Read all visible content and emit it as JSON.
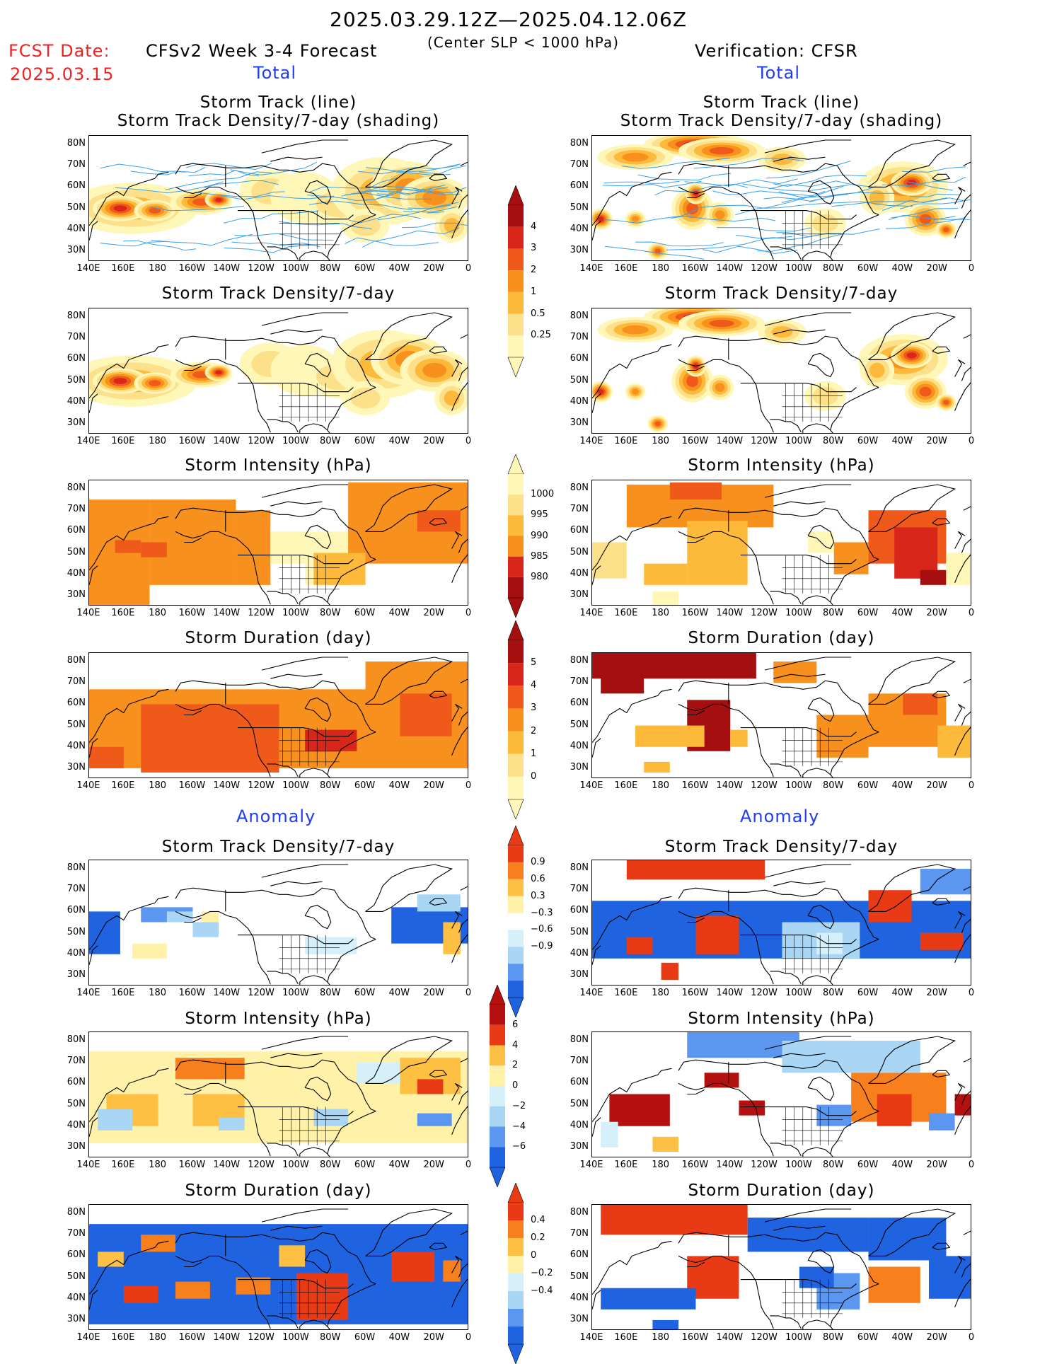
{
  "header": {
    "date_range": "2025.03.29.12Z—2025.04.12.06Z",
    "fcst_label": "FCST Date:",
    "fcst_date": "2025.03.15",
    "forecast_title": "CFSv2 Week 3-4 Forecast",
    "criterion": "(Center SLP < 1000 hPa)",
    "verification": "Verification: CFSR",
    "total_left": "Total",
    "total_right": "Total",
    "anomaly_left": "Anomaly",
    "anomaly_right": "Anomaly"
  },
  "panel_titles": {
    "track_line": "Storm Track (line)",
    "track_shading": "Storm Track Density/7-day (shading)",
    "density": "Storm Track Density/7-day",
    "intensity": "Storm Intensity (hPa)",
    "duration": "Storm Duration (day)"
  },
  "axes": {
    "lat_labels": [
      "80N",
      "70N",
      "60N",
      "50N",
      "40N",
      "30N"
    ],
    "lon_labels": [
      "140E",
      "160E",
      "180",
      "160W",
      "140W",
      "120W",
      "100W",
      "80W",
      "60W",
      "40W",
      "20W",
      "0"
    ]
  },
  "colorbars": {
    "density_total": [
      "4",
      "3",
      "2",
      "1",
      "0.5",
      "0.25"
    ],
    "intensity_total": [
      "1000",
      "995",
      "990",
      "985",
      "980"
    ],
    "duration_total": [
      "5",
      "4",
      "3",
      "2",
      "1",
      "0"
    ],
    "density_anom": [
      "0.9",
      "0.6",
      "0.3",
      "−0.3",
      "−0.6",
      "−0.9"
    ],
    "intensity_anom": [
      "6",
      "4",
      "2",
      "0",
      "−2",
      "−4",
      "−6"
    ],
    "duration_anom": [
      "0.4",
      "0.2",
      "0",
      "−0.2",
      "−0.4"
    ]
  },
  "colors": {
    "seq": [
      "#fff7b8",
      "#fde08a",
      "#fdb93a",
      "#f7901c",
      "#ef5a1a",
      "#d8271a",
      "#a50f0f"
    ],
    "div_neg": [
      "#1f63e0",
      "#5b96f0",
      "#a8d6f4",
      "#d5f0fa"
    ],
    "div_pos": [
      "#fff2a8",
      "#fdc042",
      "#f77f1c",
      "#e83a14",
      "#b51010"
    ],
    "track_line": "#3aa0e8",
    "coast": "#000000"
  }
}
